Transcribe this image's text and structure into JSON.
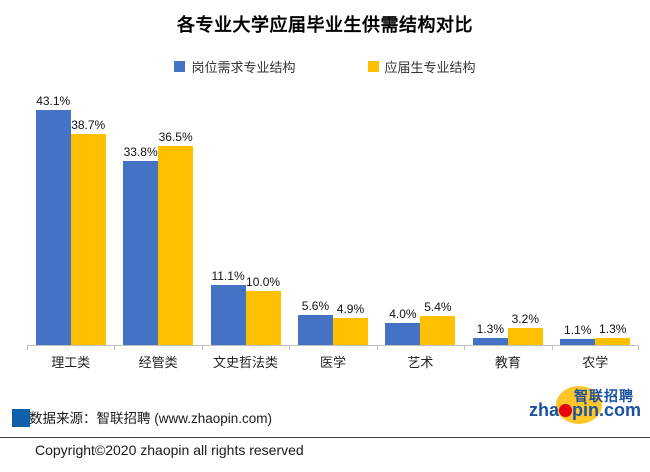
{
  "title": "各专业大学应届毕业生供需结构对比",
  "legend": [
    {
      "label": "岗位需求专业结构",
      "color": "#4472C4"
    },
    {
      "label": "应届生专业结构",
      "color": "#FFC000"
    }
  ],
  "chart_data": {
    "type": "bar",
    "title": "各专业大学应届毕业生供需结构对比",
    "categories": [
      "理工类",
      "经管类",
      "文史哲法类",
      "医学",
      "艺术",
      "教育",
      "农学"
    ],
    "series": [
      {
        "name": "岗位需求专业结构",
        "color": "#4472C4",
        "values": [
          43.1,
          33.8,
          11.1,
          5.6,
          4.0,
          1.3,
          1.1
        ]
      },
      {
        "name": "应届生专业结构",
        "color": "#FFC000",
        "values": [
          38.7,
          36.5,
          10.0,
          4.9,
          5.4,
          3.2,
          1.3
        ]
      }
    ],
    "value_suffix": "%",
    "ylim": [
      0,
      45
    ],
    "grid": false,
    "y_axis_visible": false,
    "legend_position": "top",
    "data_labels": "outside-end"
  },
  "footer": {
    "source_text": "数据来源：智联招聘 (www.zhaopin.com)",
    "source_square_color": "#0F5FAC",
    "copyright": "Copyright©2020 zhaopin all rights reserved"
  },
  "logo": {
    "chinese": "智联招聘",
    "wordmark_prefix": "zha",
    "wordmark_suffix": "pin.com",
    "blue": "#1B52A0",
    "yellow": "#FFC629",
    "red": "#E60012"
  },
  "colors": {
    "axis": "#BFBFBF",
    "divider": "#404040"
  }
}
